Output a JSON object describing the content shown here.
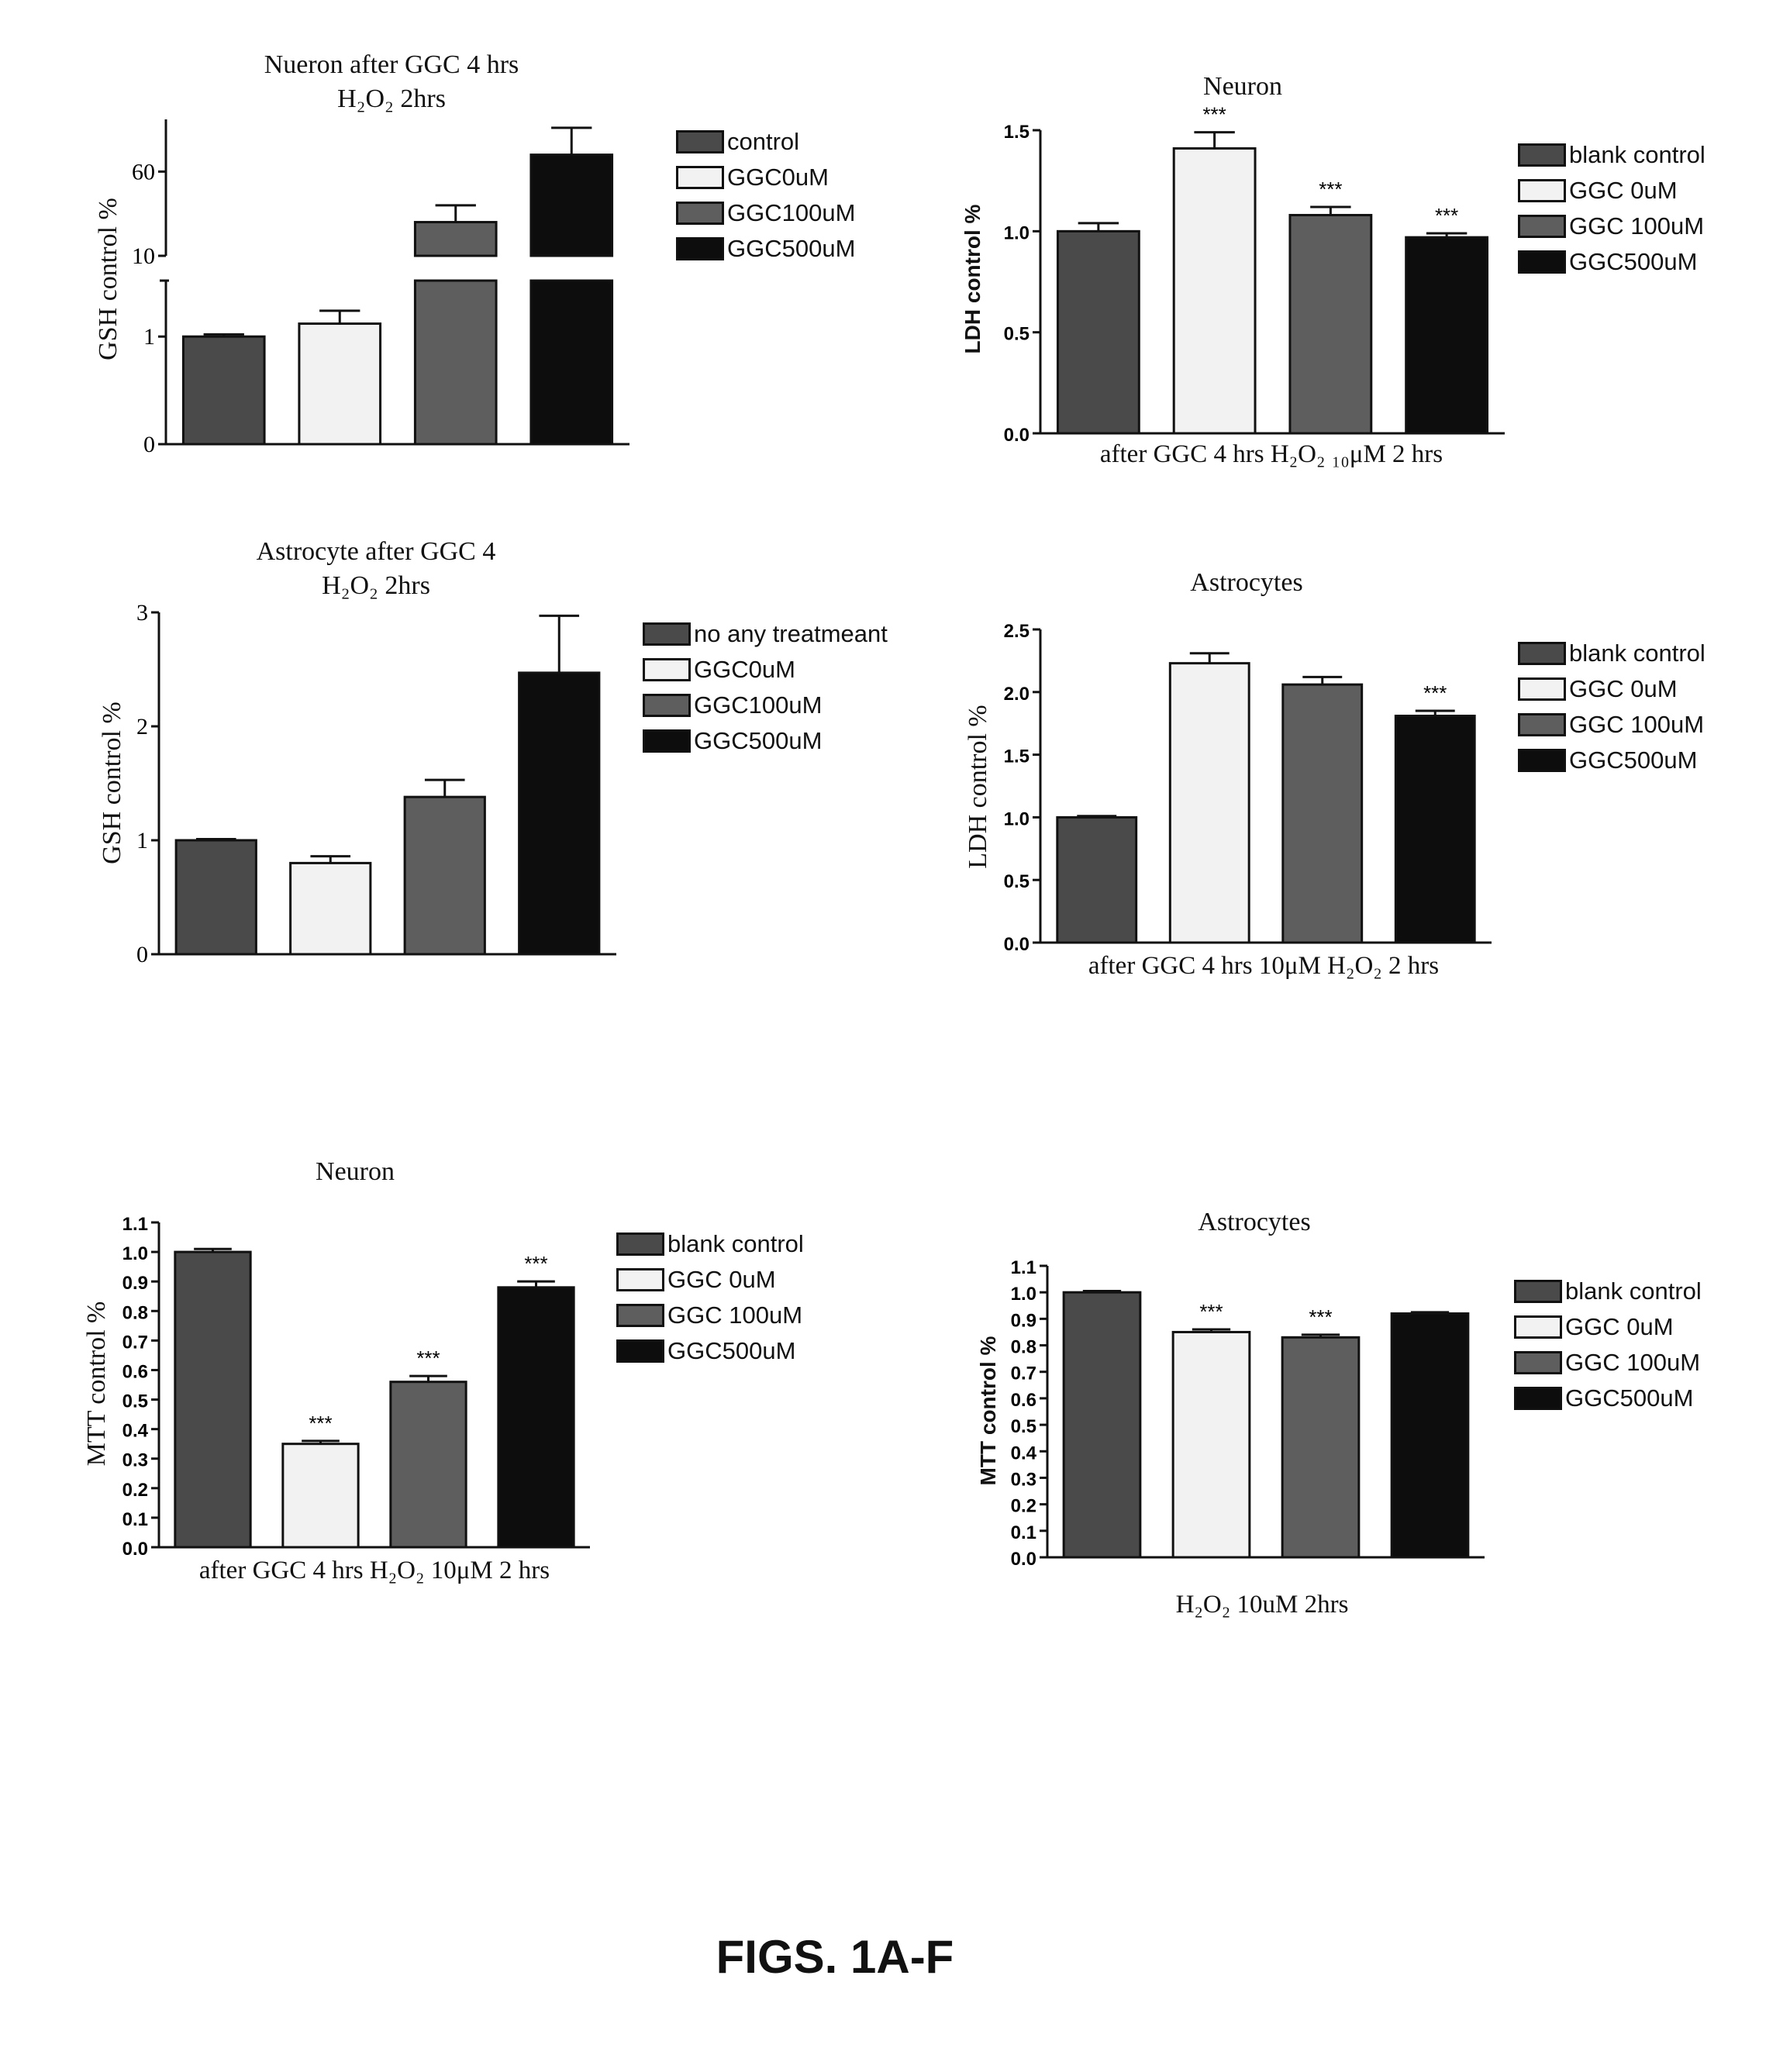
{
  "figure_label": "FIGS. 1A-F",
  "bar_colors": [
    "#4a4a4a",
    "#f2f2f2",
    "#5e5e5e",
    "#0d0d0d"
  ],
  "chart_data": [
    {
      "id": "A",
      "type": "bar",
      "title": "Nueron after GGC 4 hrs",
      "subtitle": "H₂O₂ 2hrs",
      "ylabel": "GSH  control %",
      "xlabel": "",
      "legend": [
        "control",
        "GGC0uM",
        "GGC100uM",
        "GGC500uM"
      ],
      "values": [
        1.0,
        1.12,
        30,
        70
      ],
      "errors": [
        0.02,
        0.12,
        10,
        16
      ],
      "significance": [
        "",
        "",
        "",
        ""
      ],
      "broken_axis": {
        "lower": [
          0,
          1.52
        ],
        "upper": [
          10,
          91
        ]
      },
      "yticks": [
        0,
        1,
        10,
        60
      ],
      "ytick_labels": [
        "0",
        "1",
        "10",
        "60"
      ]
    },
    {
      "id": "B",
      "type": "bar",
      "title": "Neuron",
      "subtitle": "",
      "ylabel": "LDH control %",
      "xlabel": "after GGC 4 hrs H₂O₂ ₁₀μM 2 hrs",
      "legend": [
        "blank control",
        "GGC 0uM",
        "GGC 100uM",
        "GGC500uM"
      ],
      "values": [
        1.0,
        1.41,
        1.08,
        0.97
      ],
      "errors": [
        0.04,
        0.08,
        0.04,
        0.02
      ],
      "significance": [
        "",
        "***",
        "***",
        "***"
      ],
      "ylim": [
        0,
        1.5
      ],
      "yticks": [
        0,
        0.5,
        1.0,
        1.5
      ],
      "ytick_labels": [
        "0.0",
        "0.5",
        "1.0",
        "1.5"
      ]
    },
    {
      "id": "C",
      "type": "bar",
      "title": "Astrocyte  after GGC 4",
      "subtitle": "H₂O₂ 2hrs",
      "ylabel": "GSH control %",
      "xlabel": "",
      "legend": [
        "no any treatmeant",
        "GGC0uM",
        "GGC100uM",
        "GGC500uM"
      ],
      "values": [
        1.0,
        0.8,
        1.38,
        2.47
      ],
      "errors": [
        0.01,
        0.06,
        0.15,
        0.5
      ],
      "significance": [
        "",
        "",
        "",
        ""
      ],
      "ylim": [
        0,
        3
      ],
      "yticks": [
        0,
        1,
        2,
        3
      ],
      "ytick_labels": [
        "0",
        "1",
        "2",
        "3"
      ]
    },
    {
      "id": "D",
      "type": "bar",
      "title": "Astrocytes",
      "subtitle": "",
      "ylabel": "LDH control %",
      "xlabel": "after GGC 4 hrs  10μM H₂O₂ 2 hrs",
      "legend": [
        "blank control",
        "GGC 0uM",
        "GGC 100uM",
        "GGC500uM"
      ],
      "values": [
        1.0,
        2.23,
        2.06,
        1.81
      ],
      "errors": [
        0.01,
        0.08,
        0.06,
        0.04
      ],
      "significance": [
        "",
        "",
        "",
        "***"
      ],
      "ylim": [
        0,
        2.5
      ],
      "yticks": [
        0,
        0.5,
        1.0,
        1.5,
        2.0,
        2.5
      ],
      "ytick_labels": [
        "0.0",
        "0.5",
        "1.0",
        "1.5",
        "2.0",
        "2.5"
      ]
    },
    {
      "id": "E",
      "type": "bar",
      "title": "Neuron",
      "subtitle": "",
      "ylabel": "MTT control %",
      "xlabel": "after GGC 4 hrs H₂O₂ 10μM 2 hrs",
      "legend": [
        "blank control",
        "GGC 0uM",
        "GGC 100uM",
        "GGC500uM"
      ],
      "values": [
        1.0,
        0.35,
        0.56,
        0.88
      ],
      "errors": [
        0.01,
        0.01,
        0.02,
        0.02
      ],
      "significance": [
        "",
        "***",
        "***",
        "***"
      ],
      "ylim": [
        0,
        1.1
      ],
      "yticks": [
        0,
        0.1,
        0.2,
        0.3,
        0.4,
        0.5,
        0.6,
        0.7,
        0.8,
        0.9,
        1.0,
        1.1
      ],
      "ytick_labels": [
        "0.0",
        "0.1",
        "0.2",
        "0.3",
        "0.4",
        "0.5",
        "0.6",
        "0.7",
        "0.8",
        "0.9",
        "1.0",
        "1.1"
      ]
    },
    {
      "id": "F",
      "type": "bar",
      "title": "Astrocytes",
      "subtitle": "",
      "ylabel": "MTT control %",
      "xlabel": "H₂O₂ 10uM 2hrs",
      "legend": [
        "blank control",
        "GGC 0uM",
        "GGC 100uM",
        "GGC500uM"
      ],
      "values": [
        1.0,
        0.85,
        0.83,
        0.92
      ],
      "errors": [
        0.005,
        0.01,
        0.01,
        0.005
      ],
      "significance": [
        "",
        "***",
        "***",
        ""
      ],
      "ylim": [
        0,
        1.1
      ],
      "yticks": [
        0,
        0.1,
        0.2,
        0.3,
        0.4,
        0.5,
        0.6,
        0.7,
        0.8,
        0.9,
        1.0,
        1.1
      ],
      "ytick_labels": [
        "0.0",
        "0.1",
        "0.2",
        "0.3",
        "0.4",
        "0.5",
        "0.6",
        "0.7",
        "0.8",
        "0.9",
        "1.0",
        "1.1"
      ]
    }
  ]
}
